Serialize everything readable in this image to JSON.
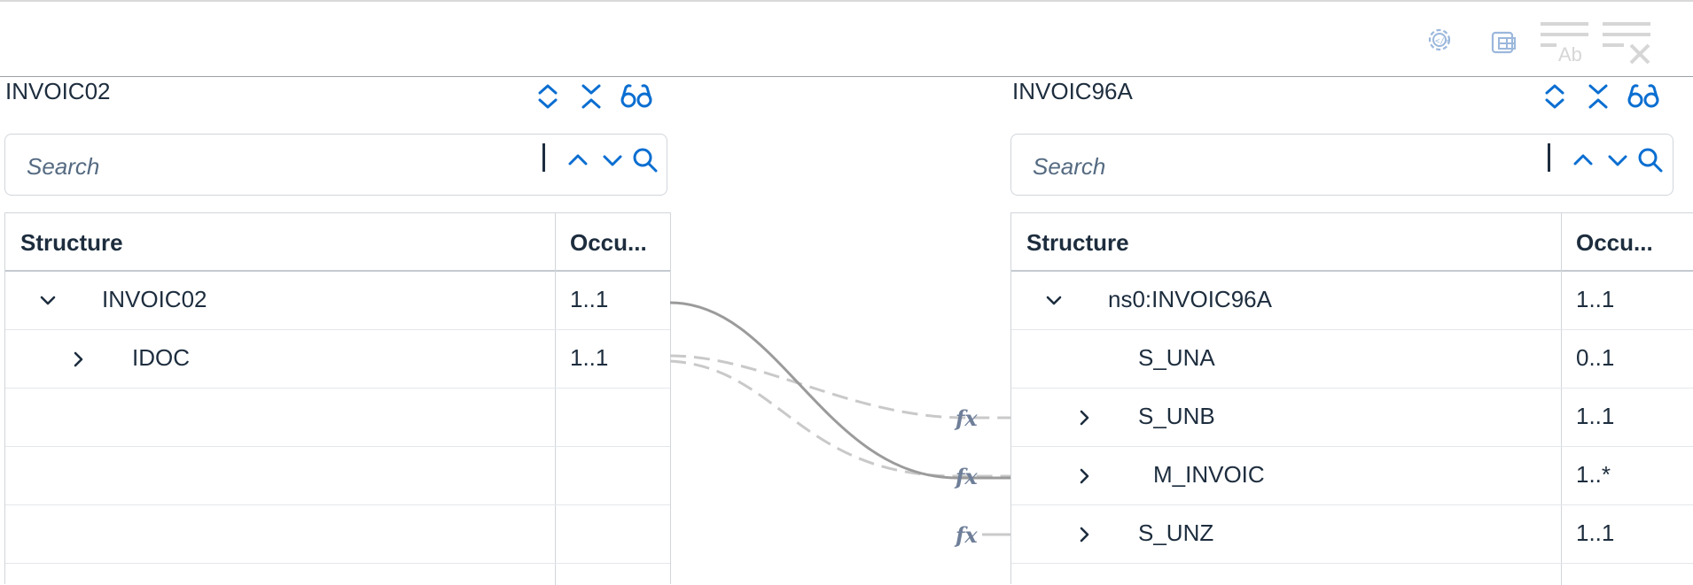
{
  "toolbar": {
    "buttons": [
      {
        "name": "xslt-settings-icon"
      },
      {
        "name": "table-layout-icon"
      },
      {
        "name": "clear-text-filter-icon"
      },
      {
        "name": "clear-filter-icon"
      }
    ]
  },
  "source": {
    "title": "INVOIC02",
    "search_placeholder": "Search",
    "columns": {
      "structure": "Structure",
      "occurrence": "Occu..."
    },
    "rows": [
      {
        "label": "INVOIC02",
        "occurrence": "1..1",
        "expander": "expanded"
      },
      {
        "label": "IDOC",
        "occurrence": "1..1",
        "expander": "collapsed"
      },
      {
        "label": "",
        "occurrence": ""
      },
      {
        "label": "",
        "occurrence": ""
      },
      {
        "label": "",
        "occurrence": ""
      }
    ]
  },
  "target": {
    "title": "INVOIC96A",
    "search_placeholder": "Search",
    "columns": {
      "structure": "Structure",
      "occurrence": "Occu..."
    },
    "rows": [
      {
        "label": "ns0:INVOIC96A",
        "occurrence": "1..1",
        "expander": "expanded"
      },
      {
        "label": "S_UNA",
        "occurrence": "0..1",
        "expander": "none"
      },
      {
        "label": "S_UNB",
        "occurrence": "1..1",
        "expander": "collapsed"
      },
      {
        "label": "M_INVOIC",
        "occurrence": "1..*",
        "expander": "collapsed"
      },
      {
        "label": "S_UNZ",
        "occurrence": "1..1",
        "expander": "collapsed"
      }
    ]
  },
  "mapping": {
    "function_label": "fx",
    "connections": [
      {
        "from": "INVOIC02",
        "to": "M_INVOIC",
        "style": "solid"
      },
      {
        "from": "IDOC",
        "to": "S_UNB",
        "style": "dashed"
      },
      {
        "from": "IDOC",
        "to": "M_INVOIC",
        "style": "dashed"
      }
    ],
    "functions": [
      {
        "target": "S_UNB"
      },
      {
        "target": "M_INVOIC"
      },
      {
        "target": "S_UNZ"
      }
    ]
  },
  "colors": {
    "accent": "#0a6ed1",
    "text": "#1d2d3e",
    "border": "#d1d6db",
    "line_solid": "#9b9b9b",
    "line_dashed": "#c9c9c9",
    "toolbar_icon": "#9bb7dc"
  }
}
